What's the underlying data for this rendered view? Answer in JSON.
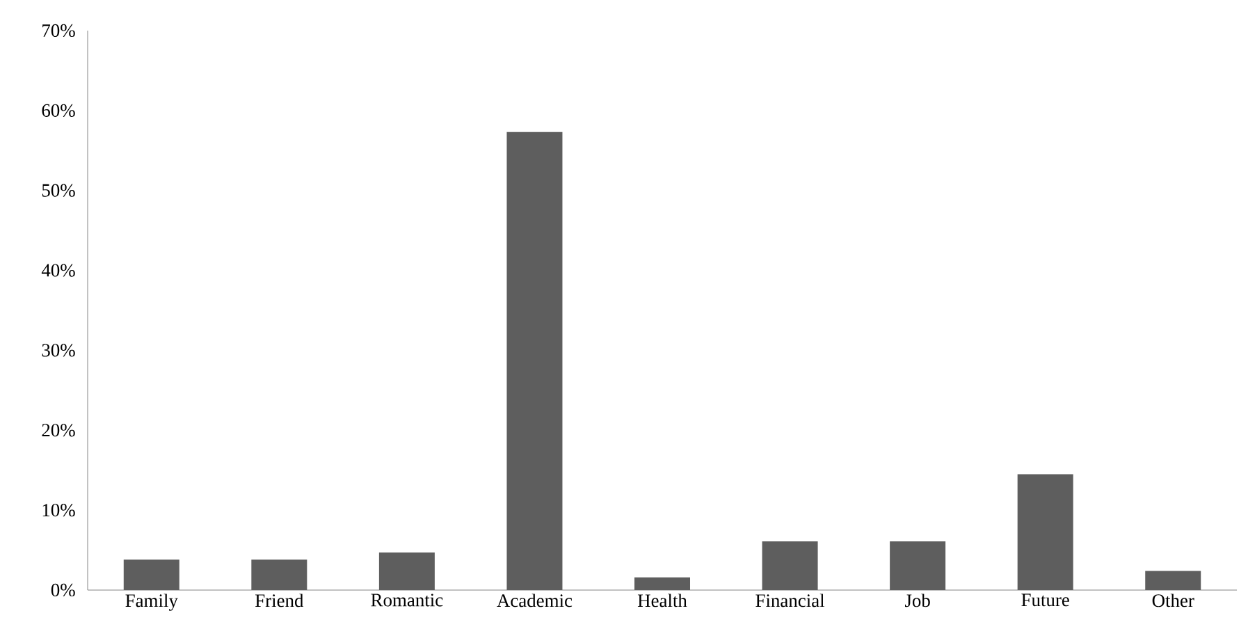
{
  "chart_data": {
    "type": "bar",
    "categories": [
      "Family",
      "Friend",
      "Romantic",
      "Academic",
      "Health",
      "Financial",
      "Job",
      "Future",
      "Other"
    ],
    "values": [
      3.8,
      3.8,
      4.7,
      57.3,
      1.6,
      6.1,
      6.1,
      14.5,
      2.4
    ],
    "color": "#5e5e5e",
    "ylim": [
      0,
      70
    ],
    "yticks": [
      {
        "value": 0,
        "label": "0%"
      },
      {
        "value": 10,
        "label": "10%"
      },
      {
        "value": 20,
        "label": "20%"
      },
      {
        "value": 30,
        "label": "30%"
      },
      {
        "value": 40,
        "label": "40%"
      },
      {
        "value": 50,
        "label": "50%"
      },
      {
        "value": 60,
        "label": "60%"
      },
      {
        "value": 70,
        "label": "70%"
      }
    ],
    "grid": false
  }
}
